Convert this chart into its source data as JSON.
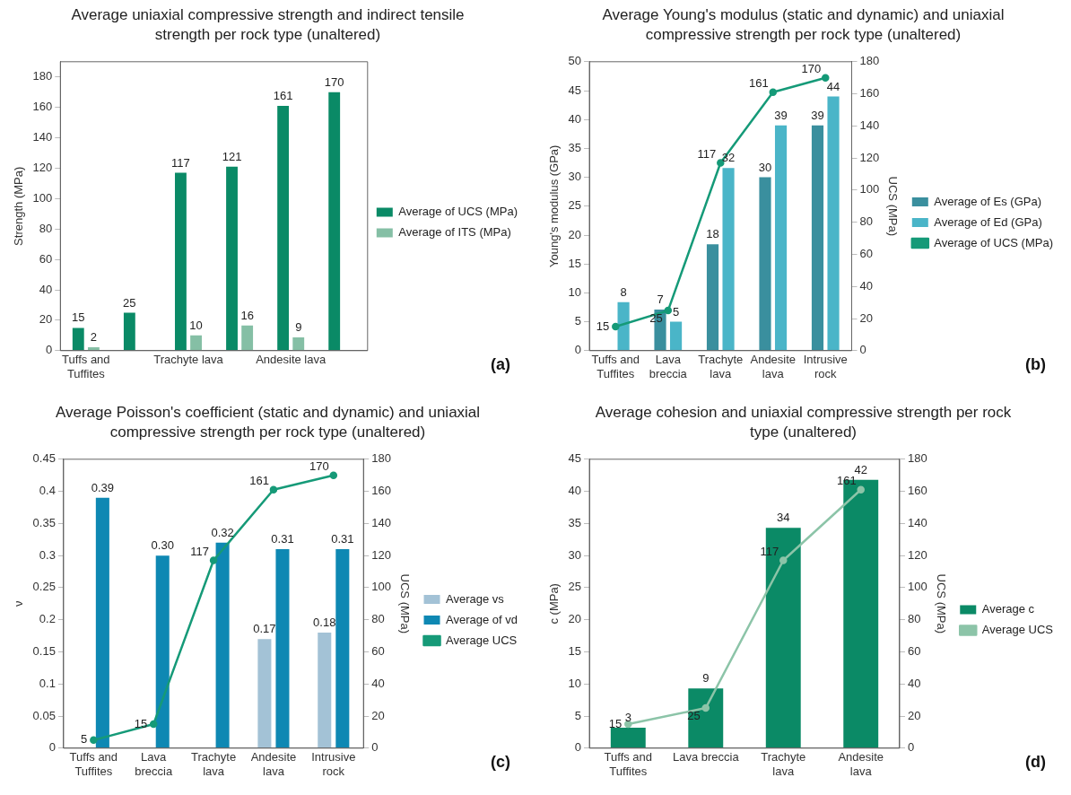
{
  "chart_data": [
    {
      "type": "bar",
      "title": "Average uniaxial compressive strength and indirect tensile strength per rock type (unaltered)",
      "ylabel": "Strength (MPa)",
      "categories": [
        "Tuffs and Tuffites",
        null,
        "Trachyte lava",
        null,
        "Andesite lava",
        null
      ],
      "series": [
        {
          "name": "Average of UCS (MPa)",
          "color": "#0a8a66",
          "values": [
            15,
            25,
            117,
            121,
            161,
            170
          ],
          "value_labels": [
            "15",
            "25",
            "117",
            "121",
            "161",
            "170"
          ]
        },
        {
          "name": "Average of ITS (MPa)",
          "color": "#85bfa5",
          "values": [
            2.3,
            null,
            10,
            16.5,
            8.7,
            null
          ],
          "value_labels": [
            "2",
            null,
            "10",
            "16",
            "9",
            null
          ]
        }
      ],
      "ylim": [
        0,
        190
      ],
      "yticks": [
        0,
        20,
        40,
        60,
        80,
        100,
        120,
        140,
        160,
        180
      ],
      "legend": "right",
      "annotations": [
        "(a)"
      ]
    },
    {
      "type": "bar",
      "title": "Average Young's modulus (static and dynamic) and uniaxial compressive strength per rock type (unaltered)",
      "ylabel": "Young's modulus (GPa)",
      "y2label": "UCS (MPa)",
      "categories": [
        "Tuffs and Tuffites",
        "Lava breccia",
        "Trachyte lava",
        "Andesite lava",
        "Intrusive rock"
      ],
      "series": [
        {
          "name": "Average of Es (GPa)",
          "color": "#3a8f9e",
          "values": [
            null,
            7.1,
            18.4,
            30,
            39
          ],
          "value_labels": [
            null,
            "7",
            "18",
            "30",
            "39"
          ]
        },
        {
          "name": "Average of Ed (GPa)",
          "color": "#4ab5c8",
          "values": [
            8.4,
            5,
            31.6,
            39,
            44
          ],
          "value_labels": [
            "8",
            "5",
            "32",
            "39",
            "44"
          ]
        },
        {
          "name": "Average of UCS (MPa)",
          "type": "line",
          "axis": "y2",
          "color": "#159a78",
          "values": [
            15,
            25,
            117,
            161,
            170
          ],
          "value_labels": [
            "15",
            "25",
            "117",
            "161",
            "170"
          ],
          "marker": "circle"
        }
      ],
      "ylim": [
        0,
        50
      ],
      "yticks": [
        0,
        5,
        10,
        15,
        20,
        25,
        30,
        35,
        40,
        45,
        50
      ],
      "y2lim": [
        0,
        180
      ],
      "y2ticks": [
        0,
        20,
        40,
        60,
        80,
        100,
        120,
        140,
        160,
        180
      ],
      "legend": "right",
      "annotations": [
        "(b)"
      ]
    },
    {
      "type": "bar",
      "title": "Average Poisson's coefficient (static and dynamic) and uniaxial compressive strength per rock type (unaltered)",
      "ylabel": "ν",
      "y2label": "UCS (MPa)",
      "categories": [
        "Tuffs and Tuffites",
        "Lava breccia",
        "Trachyte lava",
        "Andesite lava",
        "Intrusive rock"
      ],
      "series": [
        {
          "name": "Average vs",
          "color": "#a3c2d6",
          "values": [
            null,
            null,
            null,
            0.17,
            0.18
          ],
          "value_labels": [
            null,
            null,
            null,
            "0.17",
            "0.18"
          ]
        },
        {
          "name": "Average of vd",
          "color": "#0e88b3",
          "values": [
            0.39,
            0.3,
            0.32,
            0.31,
            0.31
          ],
          "value_labels": [
            "0.39",
            "0.30",
            "0.32",
            "0.31",
            "0.31"
          ]
        },
        {
          "name": "Average UCS",
          "type": "line",
          "axis": "y2",
          "color": "#169a78",
          "values": [
            5,
            15,
            117,
            161,
            170
          ],
          "value_labels": [
            "5",
            "15",
            "117",
            "161",
            "170"
          ],
          "marker": "circle"
        }
      ],
      "ylim": [
        0,
        0.45
      ],
      "yticks": [
        0,
        0.05,
        0.1,
        0.15,
        0.2,
        0.25,
        0.3,
        0.35,
        0.4,
        0.45
      ],
      "y2lim": [
        0,
        180
      ],
      "y2ticks": [
        0,
        20,
        40,
        60,
        80,
        100,
        120,
        140,
        160,
        180
      ],
      "legend": "right",
      "annotations": [
        "(c)"
      ]
    },
    {
      "type": "bar",
      "title": "Average cohesion and uniaxial compressive strength per rock type (unaltered)",
      "ylabel": "c (MPa)",
      "y2label": "UCS (MPa)",
      "categories": [
        "Tuffs and Tuffites",
        "Lava breccia",
        "Trachyte lava",
        "Andesite lava"
      ],
      "series": [
        {
          "name": "Average c",
          "color": "#0b8a66",
          "values": [
            3.2,
            9.3,
            34.3,
            41.8
          ],
          "value_labels": [
            "3",
            "9",
            "34",
            "42"
          ]
        },
        {
          "name": "Average UCS",
          "type": "line",
          "axis": "y2",
          "color": "#8cc4a8",
          "values": [
            15,
            25,
            117,
            161
          ],
          "value_labels": [
            "15",
            "25",
            "117",
            "161"
          ],
          "marker": "circle"
        }
      ],
      "ylim": [
        0,
        45
      ],
      "yticks": [
        0,
        5,
        10,
        15,
        20,
        25,
        30,
        35,
        40,
        45
      ],
      "y2lim": [
        0,
        180
      ],
      "y2ticks": [
        0,
        20,
        40,
        60,
        80,
        100,
        120,
        140,
        160,
        180
      ],
      "legend": "right",
      "annotations": [
        "(d)"
      ]
    }
  ]
}
